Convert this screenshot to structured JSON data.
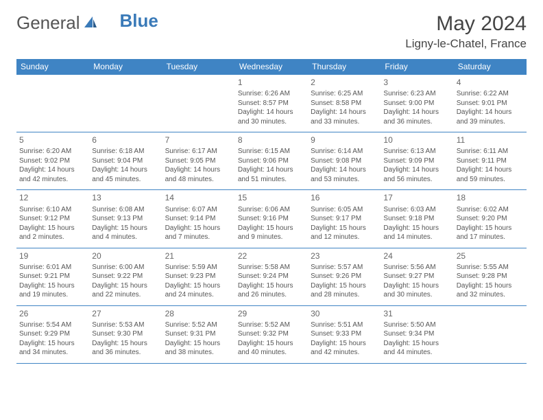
{
  "logo": {
    "text_a": "General",
    "text_b": "Blue"
  },
  "header": {
    "month_title": "May 2024",
    "location": "Ligny-le-Chatel, France"
  },
  "colors": {
    "header_bg": "#3f84c4",
    "header_text": "#ffffff",
    "border": "#3f84c4",
    "body_text": "#555555",
    "logo_gray": "#555555",
    "logo_blue": "#3a7ab8"
  },
  "day_headers": [
    "Sunday",
    "Monday",
    "Tuesday",
    "Wednesday",
    "Thursday",
    "Friday",
    "Saturday"
  ],
  "weeks": [
    [
      {
        "n": "",
        "sunrise": "",
        "sunset": "",
        "daylight": ""
      },
      {
        "n": "",
        "sunrise": "",
        "sunset": "",
        "daylight": ""
      },
      {
        "n": "",
        "sunrise": "",
        "sunset": "",
        "daylight": ""
      },
      {
        "n": "1",
        "sunrise": "Sunrise: 6:26 AM",
        "sunset": "Sunset: 8:57 PM",
        "daylight": "Daylight: 14 hours and 30 minutes."
      },
      {
        "n": "2",
        "sunrise": "Sunrise: 6:25 AM",
        "sunset": "Sunset: 8:58 PM",
        "daylight": "Daylight: 14 hours and 33 minutes."
      },
      {
        "n": "3",
        "sunrise": "Sunrise: 6:23 AM",
        "sunset": "Sunset: 9:00 PM",
        "daylight": "Daylight: 14 hours and 36 minutes."
      },
      {
        "n": "4",
        "sunrise": "Sunrise: 6:22 AM",
        "sunset": "Sunset: 9:01 PM",
        "daylight": "Daylight: 14 hours and 39 minutes."
      }
    ],
    [
      {
        "n": "5",
        "sunrise": "Sunrise: 6:20 AM",
        "sunset": "Sunset: 9:02 PM",
        "daylight": "Daylight: 14 hours and 42 minutes."
      },
      {
        "n": "6",
        "sunrise": "Sunrise: 6:18 AM",
        "sunset": "Sunset: 9:04 PM",
        "daylight": "Daylight: 14 hours and 45 minutes."
      },
      {
        "n": "7",
        "sunrise": "Sunrise: 6:17 AM",
        "sunset": "Sunset: 9:05 PM",
        "daylight": "Daylight: 14 hours and 48 minutes."
      },
      {
        "n": "8",
        "sunrise": "Sunrise: 6:15 AM",
        "sunset": "Sunset: 9:06 PM",
        "daylight": "Daylight: 14 hours and 51 minutes."
      },
      {
        "n": "9",
        "sunrise": "Sunrise: 6:14 AM",
        "sunset": "Sunset: 9:08 PM",
        "daylight": "Daylight: 14 hours and 53 minutes."
      },
      {
        "n": "10",
        "sunrise": "Sunrise: 6:13 AM",
        "sunset": "Sunset: 9:09 PM",
        "daylight": "Daylight: 14 hours and 56 minutes."
      },
      {
        "n": "11",
        "sunrise": "Sunrise: 6:11 AM",
        "sunset": "Sunset: 9:11 PM",
        "daylight": "Daylight: 14 hours and 59 minutes."
      }
    ],
    [
      {
        "n": "12",
        "sunrise": "Sunrise: 6:10 AM",
        "sunset": "Sunset: 9:12 PM",
        "daylight": "Daylight: 15 hours and 2 minutes."
      },
      {
        "n": "13",
        "sunrise": "Sunrise: 6:08 AM",
        "sunset": "Sunset: 9:13 PM",
        "daylight": "Daylight: 15 hours and 4 minutes."
      },
      {
        "n": "14",
        "sunrise": "Sunrise: 6:07 AM",
        "sunset": "Sunset: 9:14 PM",
        "daylight": "Daylight: 15 hours and 7 minutes."
      },
      {
        "n": "15",
        "sunrise": "Sunrise: 6:06 AM",
        "sunset": "Sunset: 9:16 PM",
        "daylight": "Daylight: 15 hours and 9 minutes."
      },
      {
        "n": "16",
        "sunrise": "Sunrise: 6:05 AM",
        "sunset": "Sunset: 9:17 PM",
        "daylight": "Daylight: 15 hours and 12 minutes."
      },
      {
        "n": "17",
        "sunrise": "Sunrise: 6:03 AM",
        "sunset": "Sunset: 9:18 PM",
        "daylight": "Daylight: 15 hours and 14 minutes."
      },
      {
        "n": "18",
        "sunrise": "Sunrise: 6:02 AM",
        "sunset": "Sunset: 9:20 PM",
        "daylight": "Daylight: 15 hours and 17 minutes."
      }
    ],
    [
      {
        "n": "19",
        "sunrise": "Sunrise: 6:01 AM",
        "sunset": "Sunset: 9:21 PM",
        "daylight": "Daylight: 15 hours and 19 minutes."
      },
      {
        "n": "20",
        "sunrise": "Sunrise: 6:00 AM",
        "sunset": "Sunset: 9:22 PM",
        "daylight": "Daylight: 15 hours and 22 minutes."
      },
      {
        "n": "21",
        "sunrise": "Sunrise: 5:59 AM",
        "sunset": "Sunset: 9:23 PM",
        "daylight": "Daylight: 15 hours and 24 minutes."
      },
      {
        "n": "22",
        "sunrise": "Sunrise: 5:58 AM",
        "sunset": "Sunset: 9:24 PM",
        "daylight": "Daylight: 15 hours and 26 minutes."
      },
      {
        "n": "23",
        "sunrise": "Sunrise: 5:57 AM",
        "sunset": "Sunset: 9:26 PM",
        "daylight": "Daylight: 15 hours and 28 minutes."
      },
      {
        "n": "24",
        "sunrise": "Sunrise: 5:56 AM",
        "sunset": "Sunset: 9:27 PM",
        "daylight": "Daylight: 15 hours and 30 minutes."
      },
      {
        "n": "25",
        "sunrise": "Sunrise: 5:55 AM",
        "sunset": "Sunset: 9:28 PM",
        "daylight": "Daylight: 15 hours and 32 minutes."
      }
    ],
    [
      {
        "n": "26",
        "sunrise": "Sunrise: 5:54 AM",
        "sunset": "Sunset: 9:29 PM",
        "daylight": "Daylight: 15 hours and 34 minutes."
      },
      {
        "n": "27",
        "sunrise": "Sunrise: 5:53 AM",
        "sunset": "Sunset: 9:30 PM",
        "daylight": "Daylight: 15 hours and 36 minutes."
      },
      {
        "n": "28",
        "sunrise": "Sunrise: 5:52 AM",
        "sunset": "Sunset: 9:31 PM",
        "daylight": "Daylight: 15 hours and 38 minutes."
      },
      {
        "n": "29",
        "sunrise": "Sunrise: 5:52 AM",
        "sunset": "Sunset: 9:32 PM",
        "daylight": "Daylight: 15 hours and 40 minutes."
      },
      {
        "n": "30",
        "sunrise": "Sunrise: 5:51 AM",
        "sunset": "Sunset: 9:33 PM",
        "daylight": "Daylight: 15 hours and 42 minutes."
      },
      {
        "n": "31",
        "sunrise": "Sunrise: 5:50 AM",
        "sunset": "Sunset: 9:34 PM",
        "daylight": "Daylight: 15 hours and 44 minutes."
      },
      {
        "n": "",
        "sunrise": "",
        "sunset": "",
        "daylight": ""
      }
    ]
  ]
}
